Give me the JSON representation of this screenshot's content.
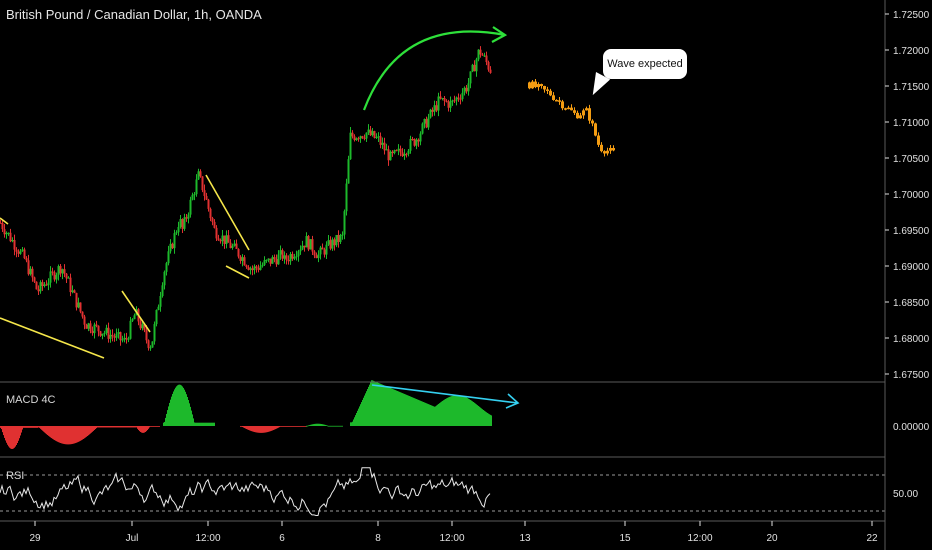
{
  "header": {
    "title": "British Pound / Canadian Dollar, 1h, OANDA"
  },
  "panes": {
    "macd_label": "MACD 4C",
    "rsi_label": "RSI"
  },
  "annotation": {
    "callout_text": "Wave expected"
  },
  "colors": {
    "background": "#000000",
    "bull": "#1db92b",
    "bear": "#e03131",
    "projection": "#f39c12",
    "trendline": "#f5e64a",
    "arc": "#2ee03a",
    "divergence": "#35d0f0",
    "axis_text": "#e0e0e0",
    "separator": "#5a5a5a"
  },
  "chart_data": [
    {
      "type": "candlestick",
      "title": "British Pound / Canadian Dollar, 1h, OANDA",
      "y_axis": {
        "ticks": [
          "1.67500",
          "1.68000",
          "1.68500",
          "1.69000",
          "1.69500",
          "1.70000",
          "1.70500",
          "1.71000",
          "1.71500",
          "1.72000",
          "1.72500"
        ],
        "range": [
          1.6735,
          1.7265
        ]
      },
      "x_axis": {
        "ticks": [
          "29",
          "Jul",
          "12:00",
          "6",
          "8",
          "12:00",
          "13",
          "15",
          "12:00",
          "20",
          "22"
        ]
      },
      "price_path": [
        {
          "x": "28 Jun 00:00",
          "close": 1.696
        },
        {
          "x": "28 Jun 12:00",
          "close": 1.691
        },
        {
          "x": "29 Jun",
          "close": 1.6865
        },
        {
          "x": "29 Jun 12:00",
          "close": 1.69
        },
        {
          "x": "30 Jun",
          "close": 1.682
        },
        {
          "x": "30 Jun 12:00",
          "close": 1.6805
        },
        {
          "x": "30 Jun 20:00",
          "close": 1.6795
        },
        {
          "x": "Jul",
          "close": 1.6835
        },
        {
          "x": "1 Jul 06:00",
          "close": 1.6795
        },
        {
          "x": "1 Jul 08:00",
          "close": 1.679
        },
        {
          "x": "1 Jul 14:00",
          "close": 1.689
        },
        {
          "x": "1 Jul 22:00",
          "close": 1.6965
        },
        {
          "x": "2 Jul 02:00",
          "close": 1.695
        },
        {
          "x": "2 Jul 10:00",
          "close": 1.7025
        },
        {
          "x": "2 Jul 12:00",
          "close": 1.701
        },
        {
          "x": "2 Jul 18:00",
          "close": 1.695
        },
        {
          "x": "3 Jul 00:00",
          "close": 1.6915
        },
        {
          "x": "3 Jul 06:00",
          "close": 1.6895
        },
        {
          "x": "5 Jul 12:00",
          "close": 1.6915
        },
        {
          "x": "6",
          "close": 1.6905
        },
        {
          "x": "6 Jul 12:00",
          "close": 1.6935
        },
        {
          "x": "6 Jul 18:00",
          "close": 1.6915
        },
        {
          "x": "7 Jul 00:00",
          "close": 1.693
        },
        {
          "x": "7 Jul 06:00",
          "close": 1.694
        },
        {
          "x": "7 Jul 10:00",
          "close": 1.708
        },
        {
          "x": "7 Jul 18:00",
          "close": 1.7085
        },
        {
          "x": "8",
          "close": 1.7075
        },
        {
          "x": "8 Jul 06:00",
          "close": 1.705
        },
        {
          "x": "8 Jul 12:00",
          "close": 1.706
        },
        {
          "x": "9 Jul 00:00",
          "close": 1.7075
        },
        {
          "x": "9 Jul 12:00",
          "close": 1.713
        },
        {
          "x": "9 Jul 18:00",
          "close": 1.7125
        },
        {
          "x": "12 Jul 06:00",
          "close": 1.715
        },
        {
          "x": "12 Jul 12:00",
          "close": 1.72
        },
        {
          "x": "12 Jul 18:00",
          "close": 1.717
        }
      ],
      "projection_path": [
        {
          "x": "13",
          "close": 1.7155
        },
        {
          "x": "13 Jul 12:00",
          "close": 1.714
        },
        {
          "x": "14 Jul 00:00",
          "close": 1.711
        },
        {
          "x": "14 Jul 06:00",
          "close": 1.7115
        },
        {
          "x": "14 Jul 12:00",
          "close": 1.7065
        },
        {
          "x": "15",
          "close": 1.705
        }
      ],
      "annotations": [
        "Wave expected"
      ]
    },
    {
      "type": "histogram",
      "title": "MACD 4C",
      "y_axis": {
        "ticks": [
          "0.00000"
        ]
      },
      "segments": [
        {
          "from": "28 Jun",
          "to": "29 Jun",
          "min": -0.001,
          "color": "bear"
        },
        {
          "from": "29 Jun",
          "to": "Jul",
          "min": -0.0008,
          "color": "bear"
        },
        {
          "from": "1 Jul",
          "to": "1 Jul 12:00",
          "min": -0.0003,
          "color": "bear"
        },
        {
          "from": "1 Jul 14:00",
          "to": "2 Jul 18:00",
          "max": 0.0018,
          "color": "bull"
        },
        {
          "from": "3 Jul",
          "to": "6 Jul 12:00",
          "min": -0.0003,
          "color": "bear"
        },
        {
          "from": "6 Jul 12:00",
          "to": "7 Jul 06:00",
          "max": 0.0001,
          "color": "bull"
        },
        {
          "from": "7 Jul 10:00",
          "to": "12 Jul 18:00",
          "max": 0.002,
          "color": "bull"
        }
      ]
    },
    {
      "type": "line",
      "title": "RSI",
      "y_axis": {
        "ticks": [
          "50.00"
        ]
      },
      "series": [
        {
          "name": "RSI",
          "range": [
            25,
            78
          ]
        }
      ]
    }
  ]
}
